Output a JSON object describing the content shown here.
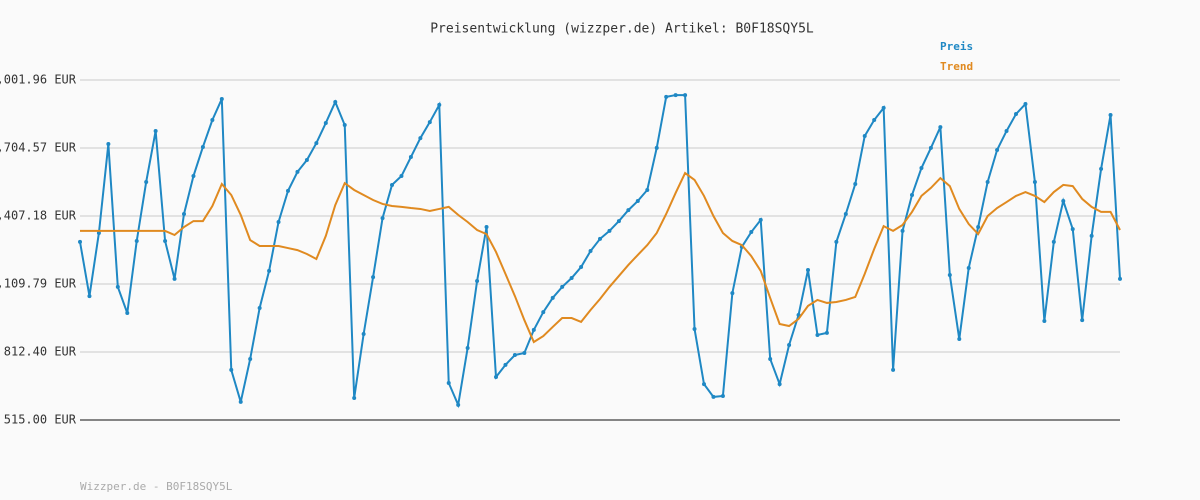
{
  "chart_data": {
    "type": "line",
    "title": "Preisentwicklung (wizzper.de) Artikel: B0F18SQY5L",
    "footer": "Wizzper.de - B0F18SQY5L",
    "ylim": [
      515.0,
      2001.96
    ],
    "yticks": [
      {
        "value": 515.0,
        "label": "515.00 EUR"
      },
      {
        "value": 812.4,
        "label": "812.40 EUR"
      },
      {
        "value": 1109.79,
        "label": "1,109.79 EUR"
      },
      {
        "value": 1407.18,
        "label": "1,407.18 EUR"
      },
      {
        "value": 1704.57,
        "label": "1,704.57 EUR"
      },
      {
        "value": 2001.96,
        "label": "2,001.96 EUR"
      }
    ],
    "grid": true,
    "legend": "top-right",
    "series": [
      {
        "name": "Preis",
        "color": "#1f88c4",
        "markers": true,
        "values": [
          1294,
          1057,
          1333,
          1722,
          1097,
          983,
          1298,
          1556,
          1779,
          1298,
          1132,
          1416,
          1582,
          1709,
          1827,
          1919,
          734,
          594,
          782,
          1005,
          1167,
          1381,
          1517,
          1600,
          1652,
          1726,
          1814,
          1906,
          1805,
          611,
          891,
          1140,
          1398,
          1543,
          1582,
          1665,
          1748,
          1818,
          1893,
          677,
          581,
          830,
          1123,
          1359,
          703,
          756,
          799,
          808,
          909,
          987,
          1049,
          1097,
          1136,
          1184,
          1254,
          1307,
          1342,
          1385,
          1433,
          1473,
          1521,
          1705,
          1928,
          1936,
          1936,
          913,
          672,
          616,
          620,
          1070,
          1272,
          1337,
          1390,
          782,
          672,
          843,
          974,
          1171,
          887,
          896,
          1294,
          1416,
          1547,
          1757,
          1827,
          1880,
          734,
          1342,
          1499,
          1617,
          1705,
          1796,
          1149,
          869,
          1180,
          1359,
          1556,
          1696,
          1779,
          1853,
          1897,
          1556,
          948,
          1294,
          1473,
          1350,
          952,
          1320,
          1613,
          1849,
          1132
        ]
      },
      {
        "name": "Trend",
        "color": "#e08a20",
        "markers": false,
        "values": [
          1342,
          1342,
          1342,
          1342,
          1342,
          1342,
          1342,
          1342,
          1342,
          1342,
          1324,
          1359,
          1385,
          1385,
          1451,
          1547,
          1499,
          1412,
          1302,
          1276,
          1276,
          1276,
          1267,
          1258,
          1241,
          1219,
          1320,
          1455,
          1551,
          1521,
          1499,
          1477,
          1460,
          1451,
          1447,
          1442,
          1438,
          1429,
          1438,
          1447,
          1412,
          1381,
          1346,
          1328,
          1250,
          1154,
          1057,
          952,
          856,
          882,
          922,
          961,
          961,
          944,
          996,
          1044,
          1097,
          1145,
          1193,
          1237,
          1280,
          1333,
          1416,
          1508,
          1595,
          1565,
          1495,
          1407,
          1333,
          1298,
          1280,
          1232,
          1167,
          1049,
          935,
          926,
          957,
          1014,
          1040,
          1027,
          1031,
          1040,
          1053,
          1154,
          1263,
          1363,
          1342,
          1368,
          1425,
          1495,
          1530,
          1573,
          1538,
          1438,
          1372,
          1328,
          1407,
          1442,
          1468,
          1495,
          1512,
          1495,
          1468,
          1512,
          1543,
          1538,
          1482,
          1447,
          1425,
          1425,
          1346
        ]
      }
    ]
  }
}
